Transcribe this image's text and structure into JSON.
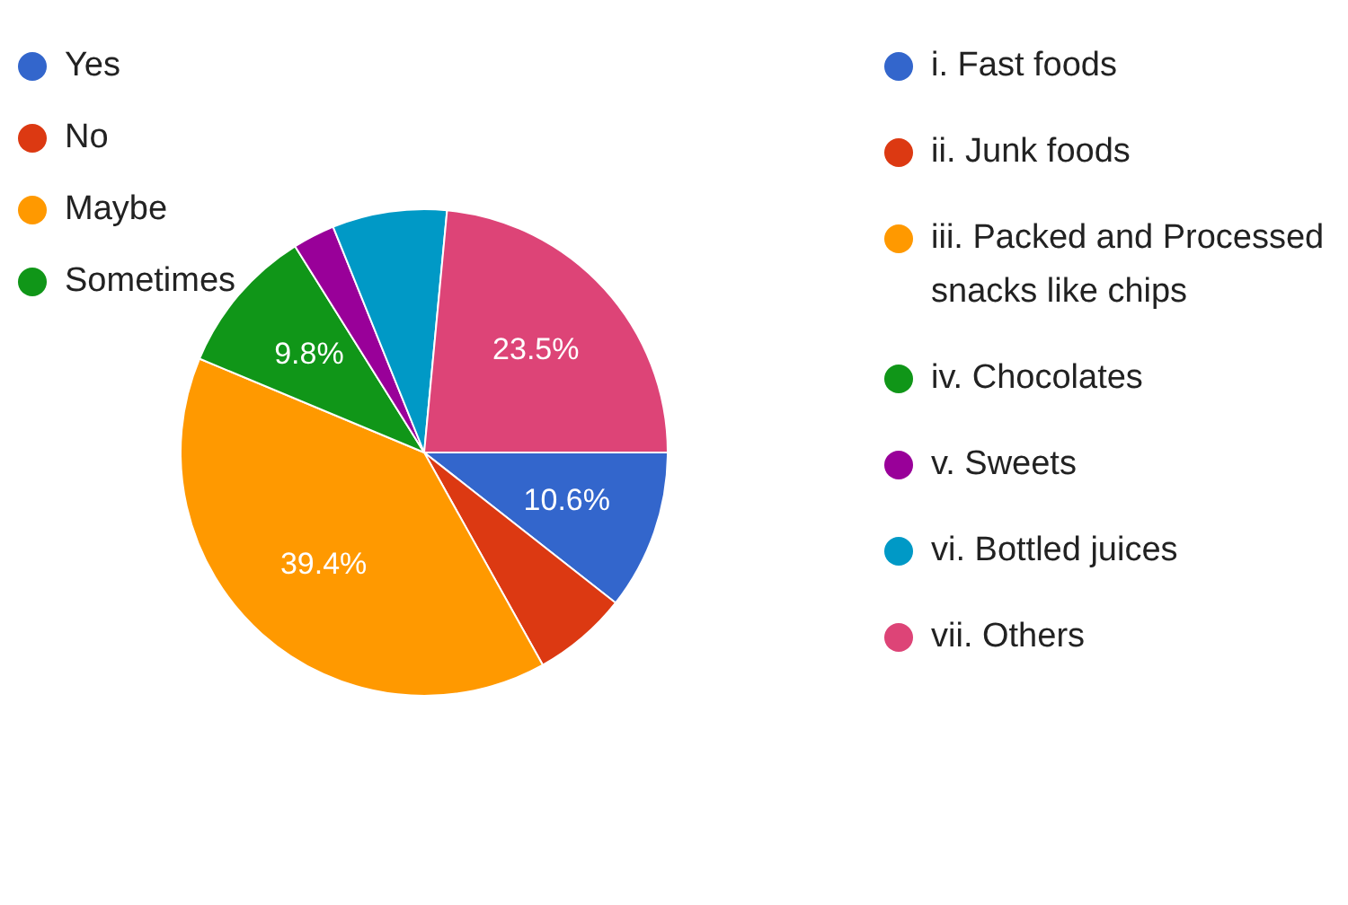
{
  "chart_data": {
    "type": "pie",
    "categories": [
      "i. Fast foods",
      "ii. Junk foods",
      "iii. Packed and Processed snacks like chips",
      "iv. Chocolates",
      "v. Sweets",
      "vi. Bottled juices",
      "vii. Others"
    ],
    "values": [
      10.6,
      6.3,
      39.4,
      9.8,
      2.8,
      7.6,
      23.5
    ],
    "colors": [
      "#3366cc",
      "#dc3912",
      "#ff9900",
      "#109618",
      "#990099",
      "#0099c6",
      "#dd4477"
    ],
    "value_labels": [
      "10.6%",
      null,
      "39.4%",
      "9.8%",
      null,
      null,
      "23.5%"
    ],
    "legend": "right",
    "annotations": [
      "Yes",
      "No",
      "Maybe",
      "Sometimes"
    ]
  }
}
